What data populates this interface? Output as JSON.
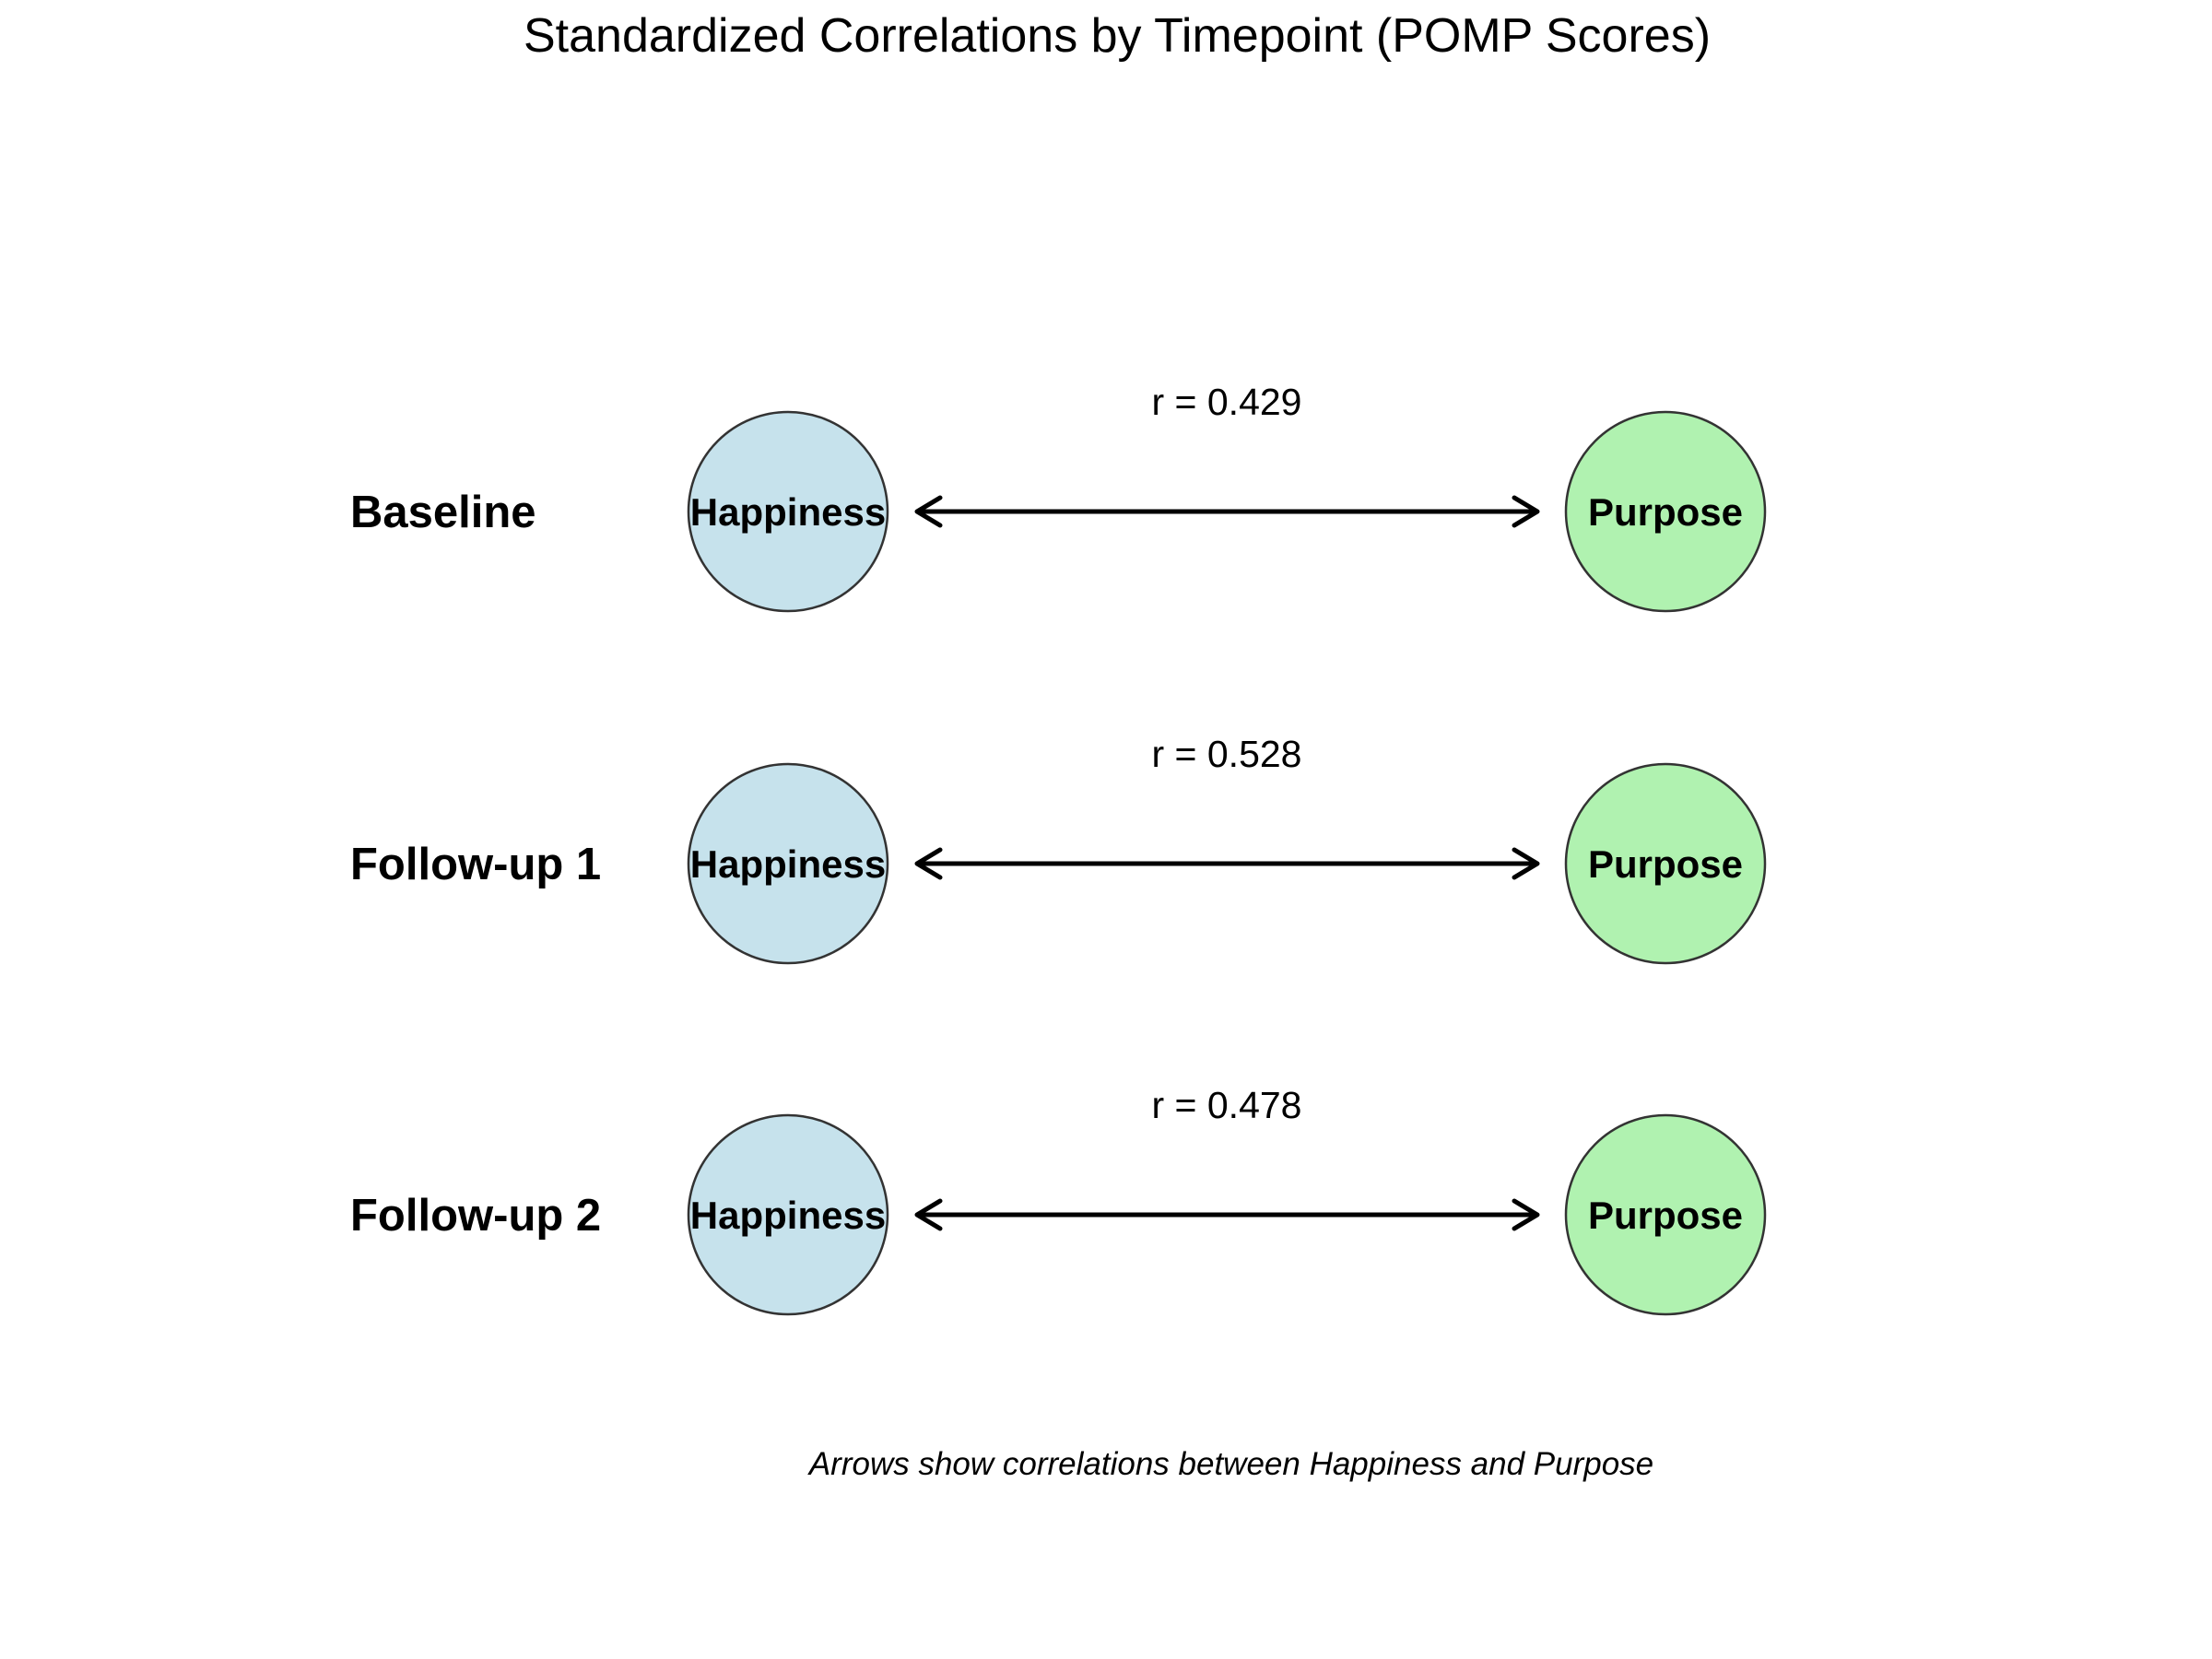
{
  "title": "Standardized Correlations by Timepoint (POMP Scores)",
  "note": "Arrows show correlations between Happiness and Purpose",
  "colors": {
    "happiness_fill": "#c6e2ec",
    "purpose_fill": "#b0f2b0",
    "node_stroke": "#333333",
    "arrow": "#000000"
  },
  "rows": [
    {
      "label": "Baseline",
      "left_node": "Happiness",
      "right_node": "Purpose",
      "correlation": "r = 0.429"
    },
    {
      "label": "Follow-up 1",
      "left_node": "Happiness",
      "right_node": "Purpose",
      "correlation": "r = 0.528"
    },
    {
      "label": "Follow-up 2",
      "left_node": "Happiness",
      "right_node": "Purpose",
      "correlation": "r = 0.478"
    }
  ]
}
